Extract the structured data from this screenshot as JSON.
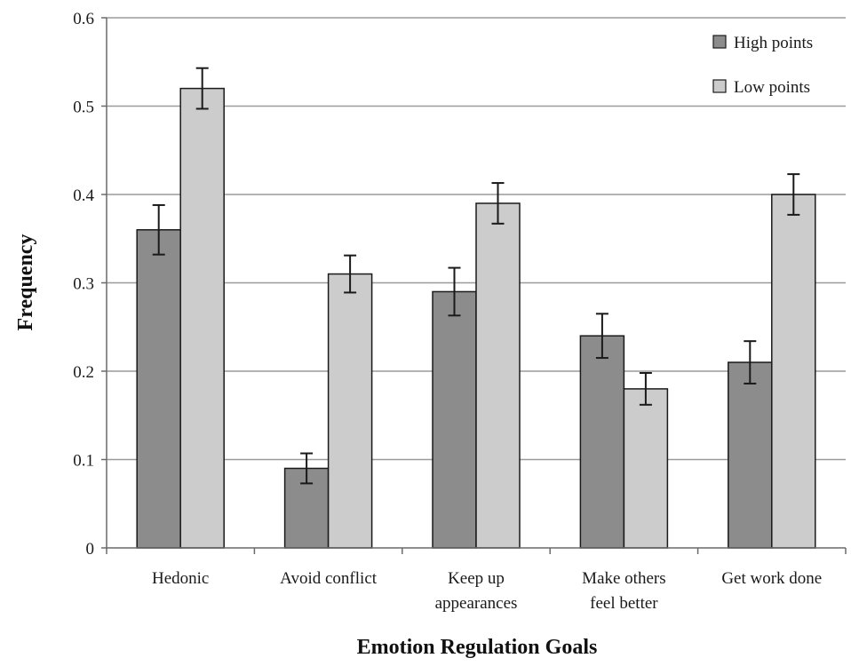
{
  "chart_data": {
    "type": "bar",
    "xlabel": "Emotion Regulation Goals",
    "ylabel": "Frequency",
    "ylim": [
      0,
      0.6
    ],
    "yticks": [
      "0",
      "0.1",
      "0.2",
      "0.3",
      "0.4",
      "0.5",
      "0.6"
    ],
    "categories": [
      [
        "Hedonic"
      ],
      [
        "Avoid conflict"
      ],
      [
        "Keep up",
        "appearances"
      ],
      [
        "Make others",
        "feel better"
      ],
      [
        "Get work done"
      ]
    ],
    "series": [
      {
        "name": "High points",
        "color": "#8c8c8c",
        "values": [
          0.36,
          0.09,
          0.29,
          0.24,
          0.21
        ],
        "errors": [
          0.028,
          0.017,
          0.027,
          0.025,
          0.024
        ]
      },
      {
        "name": "Low points",
        "color": "#cccccc",
        "values": [
          0.52,
          0.31,
          0.39,
          0.18,
          0.4
        ],
        "errors": [
          0.023,
          0.021,
          0.023,
          0.018,
          0.023
        ]
      }
    ],
    "grid": true,
    "legend_position": "top-right"
  }
}
